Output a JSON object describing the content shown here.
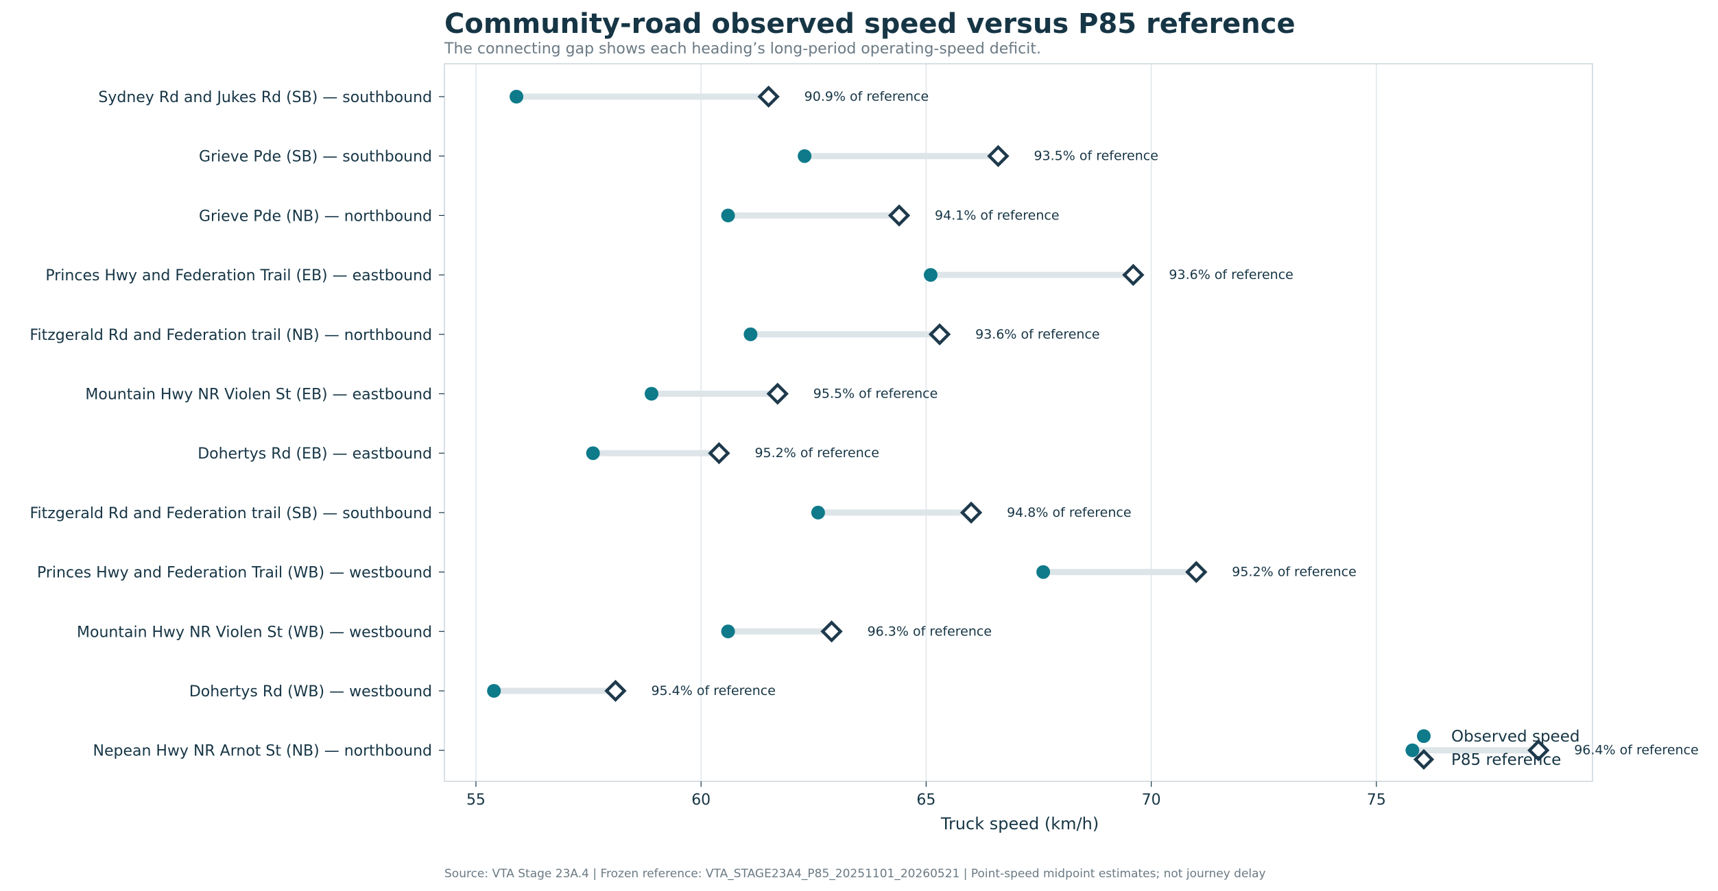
{
  "chart_data": {
    "type": "dumbbell",
    "title": "Community-road observed speed versus P85 reference",
    "subtitle": "The connecting gap shows each heading’s long-period operating-speed deficit.",
    "xlabel": "Truck speed (km/h)",
    "xlim": [
      54.3,
      79.8
    ],
    "xticks": [
      55,
      60,
      65,
      70,
      75
    ],
    "grid": "vertical",
    "legend_position": "lower-right",
    "series": [
      {
        "name": "Observed speed",
        "marker": "circle",
        "color": "#0e7a8a"
      },
      {
        "name": "P85 reference",
        "marker": "diamond",
        "color": "#1e3a4c"
      }
    ],
    "rows": [
      {
        "label": "Sydney Rd and Jukes Rd (SB) — southbound",
        "observed": 55.9,
        "reference": 61.5,
        "annotation": "90.9% of reference"
      },
      {
        "label": "Grieve Pde (SB) — southbound",
        "observed": 62.3,
        "reference": 66.6,
        "annotation": "93.5% of reference"
      },
      {
        "label": "Grieve Pde (NB) — northbound",
        "observed": 60.6,
        "reference": 64.4,
        "annotation": "94.1% of reference"
      },
      {
        "label": "Princes Hwy and Federation Trail (EB) — eastbound",
        "observed": 65.1,
        "reference": 69.6,
        "annotation": "93.6% of reference"
      },
      {
        "label": "Fitzgerald Rd and Federation trail (NB) — northbound",
        "observed": 61.1,
        "reference": 65.3,
        "annotation": "93.6% of reference"
      },
      {
        "label": "Mountain Hwy NR Violen St (EB) — eastbound",
        "observed": 58.9,
        "reference": 61.7,
        "annotation": "95.5% of reference"
      },
      {
        "label": "Dohertys Rd (EB) — eastbound",
        "observed": 57.6,
        "reference": 60.4,
        "annotation": "95.2% of reference"
      },
      {
        "label": "Fitzgerald Rd and Federation trail (SB) — southbound",
        "observed": 62.6,
        "reference": 66.0,
        "annotation": "94.8% of reference"
      },
      {
        "label": "Princes Hwy and Federation Trail (WB) — westbound",
        "observed": 67.6,
        "reference": 71.0,
        "annotation": "95.2% of reference"
      },
      {
        "label": "Mountain Hwy NR Violen St (WB) — westbound",
        "observed": 60.6,
        "reference": 62.9,
        "annotation": "96.3% of reference"
      },
      {
        "label": "Dohertys Rd (WB) — westbound",
        "observed": 55.4,
        "reference": 58.1,
        "annotation": "95.4% of reference"
      },
      {
        "label": "Nepean Hwy NR Arnot St (NB) — northbound",
        "observed": 75.8,
        "reference": 78.6,
        "annotation": "96.4% of reference"
      }
    ],
    "source": "Source: VTA Stage 23A.4 | Frozen reference: VTA_STAGE23A4_P85_20251101_20260521 | Point-speed midpoint estimates; not journey delay"
  },
  "colors": {
    "observed": "#0e7a8a",
    "reference": "#1e3a4c",
    "connector": "#dde5e9",
    "grid": "#dfe6ea",
    "axis": "#ccd6dc"
  }
}
